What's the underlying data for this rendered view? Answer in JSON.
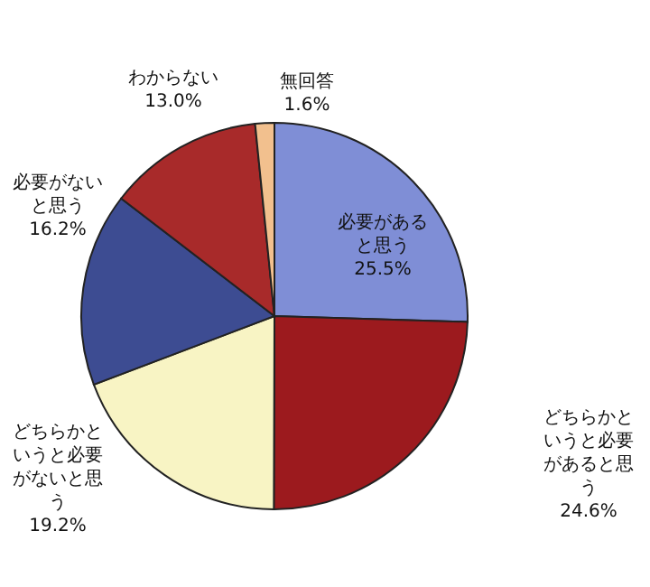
{
  "chart_data": {
    "type": "pie",
    "categories": [
      "必要があると思う",
      "どちらかというと必要があると思う",
      "どちらかというと必要がないと思う",
      "必要がないと思う",
      "わからない",
      "無回答"
    ],
    "values": [
      25.5,
      24.6,
      19.2,
      16.2,
      13.0,
      1.6
    ],
    "value_labels": [
      "25.5%",
      "24.6%",
      "19.2%",
      "16.2%",
      "13.0%",
      "1.6%"
    ],
    "colors": [
      "#7f8ed6",
      "#9c1a1e",
      "#f8f4c4",
      "#3d4c92",
      "#a82a2a",
      "#f2c08e"
    ]
  }
}
